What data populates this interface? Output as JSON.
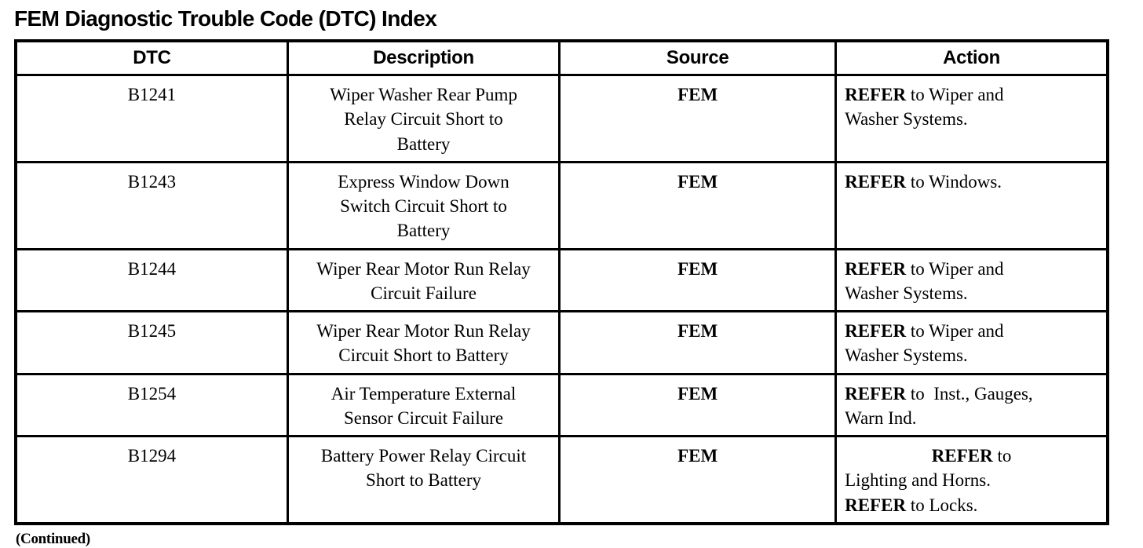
{
  "document": {
    "title": "FEM Diagnostic Trouble Code (DTC) Index",
    "footer_note": "(Continued)"
  },
  "colors": {
    "ink": "#000000",
    "paper": "#ffffff",
    "border": "#000000"
  },
  "table": {
    "headers": [
      "DTC",
      "Description",
      "Source",
      "Action"
    ],
    "rows": [
      {
        "dtc": "B1241",
        "description": "Wiper Washer Rear Pump\nRelay Circuit Short to\nBattery",
        "source": "FEM",
        "action": [
          {
            "align": "left",
            "segments": [
              {
                "text": "REFER",
                "bold": true
              },
              {
                "text": " to Wiper and",
                "bold": false
              }
            ]
          },
          {
            "align": "left",
            "segments": [
              {
                "text": "Washer Systems.",
                "bold": false
              }
            ]
          }
        ]
      },
      {
        "dtc": "B1243",
        "description": "Express Window Down\nSwitch Circuit Short to\nBattery",
        "source": "FEM",
        "action": [
          {
            "align": "left",
            "segments": [
              {
                "text": "REFER",
                "bold": true
              },
              {
                "text": " to Windows.",
                "bold": false
              }
            ]
          }
        ]
      },
      {
        "dtc": "B1244",
        "description": "Wiper Rear Motor Run Relay\nCircuit Failure",
        "source": "FEM",
        "action": [
          {
            "align": "left",
            "segments": [
              {
                "text": "REFER",
                "bold": true
              },
              {
                "text": " to Wiper and",
                "bold": false
              }
            ]
          },
          {
            "align": "left",
            "segments": [
              {
                "text": "Washer Systems.",
                "bold": false
              }
            ]
          }
        ]
      },
      {
        "dtc": "B1245",
        "description": "Wiper Rear Motor Run Relay\nCircuit Short to Battery",
        "source": "FEM",
        "action": [
          {
            "align": "left",
            "segments": [
              {
                "text": "REFER",
                "bold": true
              },
              {
                "text": " to Wiper and",
                "bold": false
              }
            ]
          },
          {
            "align": "left",
            "segments": [
              {
                "text": "Washer Systems.",
                "bold": false
              }
            ]
          }
        ]
      },
      {
        "dtc": "B1254",
        "description": "Air Temperature External\nSensor Circuit Failure",
        "source": "FEM",
        "action": [
          {
            "align": "left",
            "segments": [
              {
                "text": "REFER",
                "bold": true
              },
              {
                "text": " to  Inst., Gauges,",
                "bold": false
              }
            ]
          },
          {
            "align": "left",
            "segments": [
              {
                "text": "Warn Ind.",
                "bold": false
              }
            ]
          }
        ]
      },
      {
        "dtc": "B1294",
        "description": "Battery Power Relay Circuit\nShort to Battery",
        "source": "FEM",
        "action": [
          {
            "align": "center",
            "segments": [
              {
                "text": "REFER",
                "bold": true
              },
              {
                "text": " to",
                "bold": false
              }
            ]
          },
          {
            "align": "left",
            "segments": [
              {
                "text": "Lighting and Horns.",
                "bold": false
              }
            ]
          },
          {
            "align": "left",
            "segments": [
              {
                "text": "REFER",
                "bold": true
              },
              {
                "text": " to Locks.",
                "bold": false
              }
            ]
          }
        ]
      }
    ]
  }
}
